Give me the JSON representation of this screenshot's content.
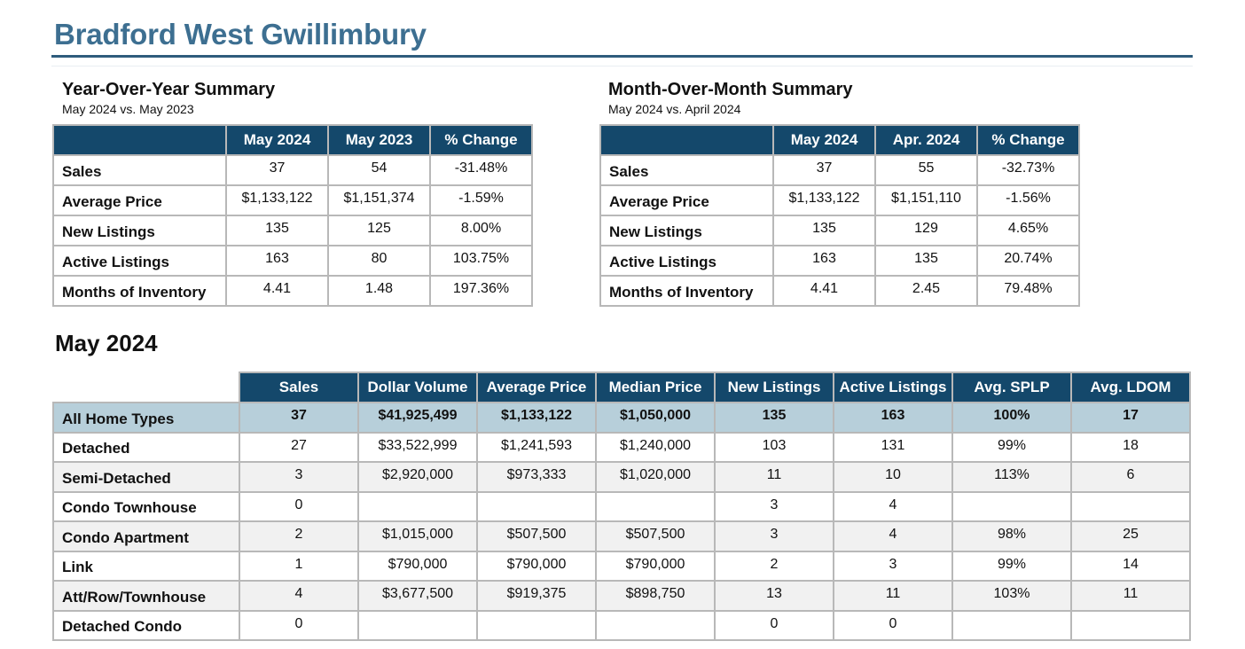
{
  "page": {
    "title": "Bradford West Gwillimbury"
  },
  "yoy": {
    "heading": "Year-Over-Year Summary",
    "subheading": "May 2024 vs. May 2023",
    "columns": [
      "May 2024",
      "May 2023",
      "% Change"
    ],
    "rows": [
      {
        "label": "Sales",
        "values": [
          "37",
          "54",
          "-31.48%"
        ]
      },
      {
        "label": "Average Price",
        "values": [
          "$1,133,122",
          "$1,151,374",
          "-1.59%"
        ]
      },
      {
        "label": "New Listings",
        "values": [
          "135",
          "125",
          "8.00%"
        ]
      },
      {
        "label": "Active Listings",
        "values": [
          "163",
          "80",
          "103.75%"
        ]
      },
      {
        "label": "Months of Inventory",
        "values": [
          "4.41",
          "1.48",
          "197.36%"
        ]
      }
    ]
  },
  "mom": {
    "heading": "Month-Over-Month Summary",
    "subheading": "May 2024 vs. April 2024",
    "columns": [
      "May 2024",
      "Apr. 2024",
      "% Change"
    ],
    "rows": [
      {
        "label": "Sales",
        "values": [
          "37",
          "55",
          "-32.73%"
        ]
      },
      {
        "label": "Average Price",
        "values": [
          "$1,133,122",
          "$1,151,110",
          "-1.56%"
        ]
      },
      {
        "label": "New Listings",
        "values": [
          "135",
          "129",
          "4.65%"
        ]
      },
      {
        "label": "Active Listings",
        "values": [
          "163",
          "135",
          "20.74%"
        ]
      },
      {
        "label": "Months of Inventory",
        "values": [
          "4.41",
          "2.45",
          "79.48%"
        ]
      }
    ]
  },
  "monthly": {
    "title": "May 2024",
    "columns": [
      "Sales",
      "Dollar Volume",
      "Average Price",
      "Median Price",
      "New Listings",
      "Active Listings",
      "Avg. SPLP",
      "Avg. LDOM"
    ],
    "rows": [
      {
        "label": "All Home Types",
        "values": [
          "37",
          "$41,925,499",
          "$1,133,122",
          "$1,050,000",
          "135",
          "163",
          "100%",
          "17"
        ]
      },
      {
        "label": "Detached",
        "values": [
          "27",
          "$33,522,999",
          "$1,241,593",
          "$1,240,000",
          "103",
          "131",
          "99%",
          "18"
        ]
      },
      {
        "label": "Semi-Detached",
        "values": [
          "3",
          "$2,920,000",
          "$973,333",
          "$1,020,000",
          "11",
          "10",
          "113%",
          "6"
        ]
      },
      {
        "label": "Condo Townhouse",
        "values": [
          "0",
          "",
          "",
          "",
          "3",
          "4",
          "",
          ""
        ]
      },
      {
        "label": "Condo Apartment",
        "values": [
          "2",
          "$1,015,000",
          "$507,500",
          "$507,500",
          "3",
          "4",
          "98%",
          "25"
        ]
      },
      {
        "label": "Link",
        "values": [
          "1",
          "$790,000",
          "$790,000",
          "$790,000",
          "2",
          "3",
          "99%",
          "14"
        ]
      },
      {
        "label": "Att/Row/Townhouse",
        "values": [
          "4",
          "$3,677,500",
          "$919,375",
          "$898,750",
          "13",
          "11",
          "103%",
          "11"
        ]
      },
      {
        "label": "Detached Condo",
        "values": [
          "0",
          "",
          "",
          "",
          "0",
          "0",
          "",
          ""
        ]
      }
    ]
  },
  "colors": {
    "title": "#3d6f91",
    "header_fill": "#14486b",
    "highlight_row": "#b7cfda",
    "alt_row": "#f1f1f1"
  }
}
